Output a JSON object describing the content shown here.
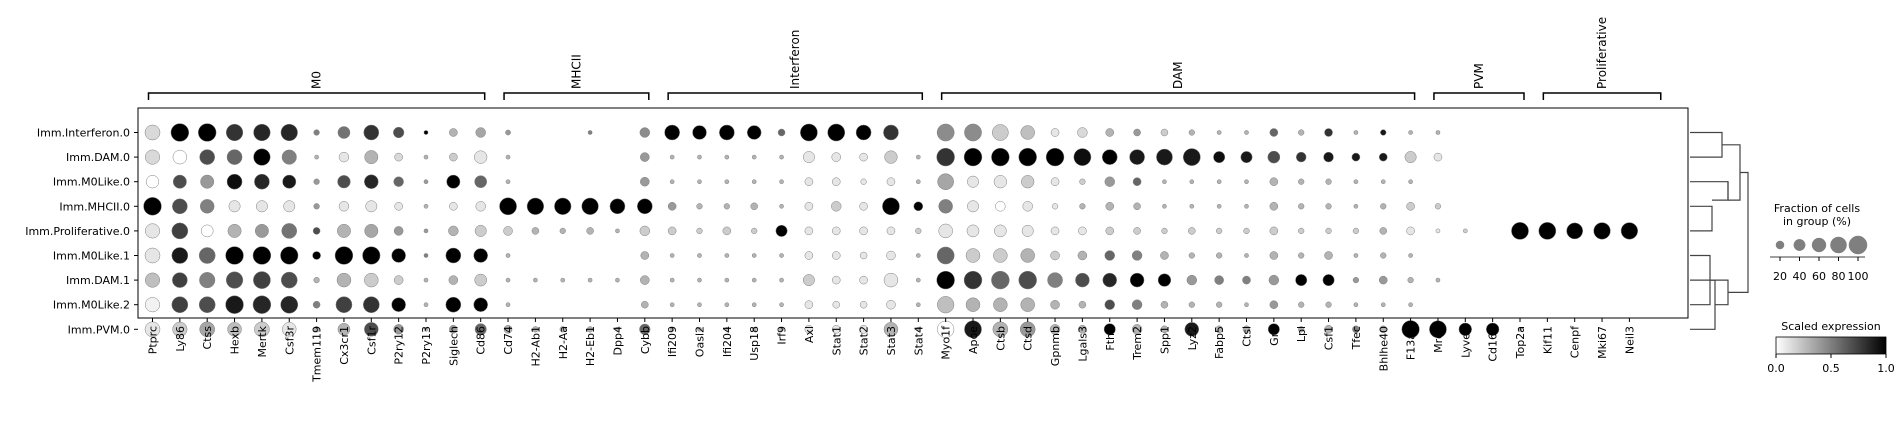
{
  "chart_data": {
    "type": "dotplot",
    "groups": [
      "Imm.Interferon.0",
      "Imm.DAM.0",
      "Imm.M0Like.0",
      "Imm.MHCII.0",
      "Imm.Proliferative.0",
      "Imm.M0Like.1",
      "Imm.DAM.1",
      "Imm.M0Like.2",
      "Imm.PVM.0"
    ],
    "genes": [
      "Ptprc",
      "Ly86",
      "Ctss",
      "Hexb",
      "Mertk",
      "Csf3r",
      "Tmem119",
      "Cx3cr1",
      "Csf1r",
      "P2ry12",
      "P2ry13",
      "Siglech",
      "Cd86",
      "Cd74",
      "H2-Ab1",
      "H2-Aa",
      "H2-Eb1",
      "Dpp4",
      "Cybb",
      "Ifi209",
      "Oasl2",
      "Ifi204",
      "Usp18",
      "Irf9",
      "Axl",
      "Stat1",
      "Stat2",
      "Stat3",
      "Stat4",
      "Myo1f",
      "Apoe",
      "Ctsb",
      "Ctsd",
      "Gpnmb",
      "Lgals3",
      "Fth1",
      "Trem2",
      "Spp1",
      "Lyz2",
      "Fabp5",
      "Ctsl",
      "Grn",
      "Lpl",
      "Csf1",
      "Tfec",
      "Bhlhe40",
      "F13a1",
      "Mrc1",
      "Lyve1",
      "Cd163",
      "Top2a",
      "Kif11",
      "Cenpf",
      "Mki67",
      "Neil3"
    ],
    "gene_groups": [
      {
        "label": "M0",
        "start": 0,
        "end": 12
      },
      {
        "label": "MHCII",
        "start": 13,
        "end": 18
      },
      {
        "label": "Interferon",
        "start": 19,
        "end": 28
      },
      {
        "label": "DAM",
        "start": 29,
        "end": 46
      },
      {
        "label": "PVM",
        "start": 47,
        "end": 50
      },
      {
        "label": "Proliferative",
        "start": 51,
        "end": 55
      }
    ],
    "fraction": [
      [
        70,
        98,
        98,
        85,
        85,
        85,
        10,
        45,
        70,
        35,
        5,
        20,
        30,
        8,
        0,
        0,
        5,
        0,
        30,
        70,
        60,
        70,
        60,
        15,
        90,
        90,
        70,
        70,
        0,
        90,
        90,
        80,
        60,
        20,
        30,
        20,
        15,
        15,
        10,
        5,
        5,
        20,
        10,
        20,
        5,
        10,
        5,
        5,
        0,
        0,
        0,
        0,
        0,
        0,
        0
      ],
      [
        65,
        60,
        70,
        70,
        85,
        65,
        5,
        30,
        55,
        20,
        5,
        20,
        50,
        5,
        0,
        0,
        0,
        0,
        25,
        5,
        5,
        5,
        5,
        5,
        40,
        25,
        20,
        50,
        5,
        98,
        98,
        98,
        98,
        98,
        90,
        70,
        70,
        80,
        90,
        40,
        40,
        45,
        30,
        30,
        20,
        20,
        40,
        20,
        0,
        0,
        0,
        0,
        0,
        0,
        0
      ],
      [
        50,
        55,
        55,
        70,
        70,
        55,
        10,
        50,
        60,
        30,
        5,
        55,
        45,
        5,
        0,
        0,
        0,
        0,
        25,
        5,
        5,
        5,
        5,
        5,
        20,
        20,
        10,
        20,
        5,
        80,
        40,
        50,
        50,
        20,
        10,
        30,
        20,
        5,
        5,
        5,
        5,
        20,
        10,
        10,
        5,
        5,
        5,
        0,
        0,
        0,
        0,
        0,
        0,
        0,
        0
      ],
      [
        98,
        70,
        60,
        40,
        40,
        40,
        10,
        30,
        40,
        20,
        5,
        20,
        30,
        90,
        85,
        85,
        85,
        70,
        70,
        20,
        10,
        10,
        15,
        5,
        20,
        30,
        20,
        90,
        25,
        60,
        40,
        30,
        30,
        10,
        10,
        20,
        15,
        5,
        5,
        5,
        5,
        20,
        10,
        10,
        5,
        10,
        20,
        10,
        0,
        0,
        0,
        0,
        0,
        0,
        0
      ],
      [
        65,
        80,
        45,
        55,
        55,
        70,
        15,
        55,
        55,
        25,
        5,
        30,
        40,
        25,
        15,
        10,
        15,
        5,
        30,
        20,
        10,
        20,
        10,
        40,
        20,
        20,
        20,
        20,
        10,
        60,
        45,
        45,
        40,
        20,
        20,
        20,
        15,
        10,
        15,
        10,
        10,
        20,
        10,
        10,
        10,
        15,
        20,
        5,
        5,
        0,
        90,
        90,
        80,
        85,
        85
      ],
      [
        70,
        80,
        80,
        98,
        98,
        95,
        20,
        98,
        95,
        60,
        5,
        70,
        60,
        5,
        0,
        0,
        0,
        0,
        20,
        5,
        5,
        5,
        5,
        5,
        20,
        20,
        15,
        25,
        5,
        90,
        60,
        60,
        60,
        25,
        25,
        30,
        30,
        20,
        10,
        10,
        5,
        20,
        10,
        20,
        5,
        10,
        5,
        0,
        0,
        0,
        0,
        0,
        0,
        0,
        0
      ],
      [
        65,
        70,
        75,
        85,
        90,
        80,
        10,
        60,
        60,
        25,
        5,
        25,
        45,
        5,
        5,
        5,
        5,
        5,
        25,
        5,
        5,
        5,
        5,
        5,
        40,
        20,
        20,
        60,
        5,
        98,
        98,
        98,
        98,
        70,
        60,
        60,
        60,
        50,
        30,
        25,
        20,
        30,
        40,
        40,
        10,
        20,
        10,
        5,
        0,
        0,
        0,
        0,
        0,
        0,
        0
      ],
      [
        65,
        80,
        80,
        98,
        98,
        90,
        15,
        80,
        80,
        60,
        5,
        70,
        60,
        5,
        0,
        0,
        0,
        0,
        15,
        5,
        5,
        5,
        5,
        5,
        20,
        15,
        15,
        25,
        5,
        85,
        60,
        60,
        60,
        25,
        15,
        30,
        30,
        15,
        10,
        10,
        5,
        20,
        10,
        10,
        5,
        5,
        5,
        0,
        0,
        0,
        0,
        0,
        0,
        0,
        0
      ],
      [
        70,
        65,
        70,
        60,
        70,
        60,
        10,
        45,
        60,
        30,
        5,
        20,
        40,
        20,
        10,
        10,
        10,
        5,
        35,
        5,
        5,
        5,
        5,
        5,
        20,
        20,
        20,
        60,
        5,
        85,
        90,
        70,
        70,
        30,
        20,
        40,
        30,
        15,
        60,
        15,
        15,
        40,
        10,
        20,
        15,
        15,
        95,
        90,
        50,
        50,
        5,
        0,
        0,
        0,
        0
      ]
    ],
    "expression": [
      [
        0.15,
        1.0,
        1.0,
        0.8,
        0.85,
        0.85,
        0.5,
        0.55,
        0.8,
        0.7,
        1.0,
        0.3,
        0.35,
        0.4,
        0,
        0,
        0.5,
        0,
        0.45,
        1.0,
        1.0,
        1.0,
        1.0,
        0.6,
        1.0,
        1.0,
        1.0,
        0.8,
        0,
        0.45,
        0.45,
        0.2,
        0.25,
        0.1,
        0.15,
        0.3,
        0.4,
        0.2,
        0.3,
        0.3,
        0.3,
        0.6,
        0.3,
        0.8,
        0.3,
        0.9,
        0.3,
        0.3,
        0,
        0,
        0,
        0,
        0,
        0,
        0
      ],
      [
        0.15,
        0.0,
        0.7,
        0.6,
        1.0,
        0.5,
        0.3,
        0.1,
        0.3,
        0.15,
        0.3,
        0.2,
        0.1,
        0.3,
        0,
        0,
        0,
        0,
        0.4,
        0.3,
        0.3,
        0.3,
        0.3,
        0.3,
        0.1,
        0.1,
        0.1,
        0.2,
        0.3,
        0.8,
        1.0,
        1.0,
        1.0,
        1.0,
        0.95,
        1.0,
        0.9,
        0.9,
        0.9,
        0.95,
        0.9,
        0.7,
        0.8,
        0.9,
        0.9,
        0.9,
        0.2,
        0.1,
        0,
        0,
        0,
        0,
        0,
        0,
        0
      ],
      [
        0.0,
        0.7,
        0.4,
        0.95,
        0.85,
        0.9,
        0.4,
        0.7,
        0.85,
        0.6,
        0.4,
        1.0,
        0.6,
        0.3,
        0,
        0,
        0,
        0,
        0.4,
        0.3,
        0.3,
        0.3,
        0.3,
        0.3,
        0.1,
        0.1,
        0.1,
        0.1,
        0.3,
        0.35,
        0.1,
        0.1,
        0.2,
        0.1,
        0.2,
        0.4,
        0.6,
        0.3,
        0.3,
        0.3,
        0.3,
        0.3,
        0.3,
        0.3,
        0.3,
        0.3,
        0.3,
        0,
        0,
        0,
        0,
        0,
        0,
        0,
        0
      ],
      [
        1.0,
        0.7,
        0.5,
        0.1,
        0.1,
        0.1,
        0.4,
        0.1,
        0.1,
        0.1,
        0.3,
        0.1,
        0.1,
        1.0,
        1.0,
        1.0,
        1.0,
        1.0,
        1.0,
        0.4,
        0.3,
        0.3,
        0.3,
        0.3,
        0.1,
        0.2,
        0.1,
        1.0,
        1.0,
        0.5,
        0.1,
        0.0,
        0.1,
        0.1,
        0.3,
        0.3,
        0.3,
        0.3,
        0.3,
        0.3,
        0.3,
        0.3,
        0.3,
        0.3,
        0.3,
        0.3,
        0.2,
        0.2,
        0,
        0,
        0,
        0,
        0,
        0,
        0
      ],
      [
        0.1,
        0.75,
        0.0,
        0.3,
        0.4,
        0.55,
        0.7,
        0.3,
        0.35,
        0.4,
        0.4,
        0.3,
        0.2,
        0.2,
        0.3,
        0.3,
        0.3,
        0.3,
        0.2,
        0.2,
        0.2,
        0.2,
        0.2,
        1.0,
        0.1,
        0.1,
        0.1,
        0.1,
        0.2,
        0.1,
        0.1,
        0.1,
        0.1,
        0.1,
        0.1,
        0.2,
        0.2,
        0.2,
        0.2,
        0.2,
        0.2,
        0.2,
        0.2,
        0.2,
        0.2,
        0.3,
        0.1,
        0.1,
        0.2,
        0,
        1.0,
        1.0,
        1.0,
        1.0,
        1.0
      ],
      [
        0.1,
        0.9,
        0.6,
        1.0,
        1.0,
        1.0,
        1.0,
        1.0,
        1.0,
        1.0,
        0.5,
        1.0,
        1.0,
        0.3,
        0,
        0,
        0,
        0,
        0.3,
        0.3,
        0.3,
        0.3,
        0.3,
        0.3,
        0.1,
        0.1,
        0.1,
        0.1,
        0.3,
        0.6,
        0.2,
        0.2,
        0.3,
        0.2,
        0.3,
        0.6,
        0.5,
        0.3,
        0.3,
        0.3,
        0.3,
        0.3,
        0.3,
        0.3,
        0.3,
        0.3,
        0.3,
        0,
        0,
        0,
        0,
        0,
        0,
        0,
        0
      ],
      [
        0.25,
        0.75,
        0.5,
        0.7,
        0.75,
        0.7,
        0.3,
        0.3,
        0.2,
        0.2,
        0.3,
        0.3,
        0.2,
        0.3,
        0.3,
        0.3,
        0.3,
        0.3,
        0.3,
        0.3,
        0.3,
        0.3,
        0.3,
        0.3,
        0.2,
        0.1,
        0.1,
        0.1,
        0.3,
        1.0,
        0.8,
        0.6,
        0.7,
        0.5,
        0.7,
        0.85,
        1.0,
        1.0,
        0.4,
        0.5,
        0.5,
        0.4,
        1.0,
        1.0,
        0.4,
        0.4,
        0.3,
        0.3,
        0,
        0,
        0,
        0,
        0,
        0,
        0
      ],
      [
        0.05,
        0.75,
        0.7,
        0.9,
        0.85,
        0.85,
        0.5,
        0.75,
        0.8,
        1.0,
        0.3,
        1.0,
        1.0,
        0.3,
        0,
        0,
        0,
        0,
        0.3,
        0.3,
        0.3,
        0.3,
        0.3,
        0.3,
        0.1,
        0.1,
        0.1,
        0.1,
        0.3,
        0.25,
        0.3,
        0.3,
        0.3,
        0.3,
        0.3,
        0.7,
        0.5,
        0.3,
        0.3,
        0.3,
        0.3,
        0.4,
        0.3,
        0.3,
        0.3,
        0.3,
        0.3,
        0,
        0,
        0,
        0,
        0,
        0,
        0,
        0
      ],
      [
        0.1,
        0.2,
        0.35,
        0.25,
        0.2,
        0.1,
        0.3,
        0.3,
        0.7,
        0.4,
        0.3,
        0.4,
        0.6,
        0.3,
        0.3,
        0.3,
        0.3,
        0.3,
        0.6,
        0.3,
        0.3,
        0.3,
        0.3,
        0.3,
        0.1,
        0.1,
        0.1,
        0.3,
        0.3,
        0.0,
        0.9,
        0.3,
        0.4,
        0.3,
        0.3,
        1.0,
        0.3,
        0.3,
        0.9,
        0.3,
        0.3,
        1.0,
        0.3,
        0.3,
        0.5,
        0.3,
        1.0,
        1.0,
        1.0,
        1.0,
        0.3,
        0,
        0,
        0,
        0
      ]
    ],
    "size_legend": {
      "title": "Fraction of cells\nin group (%)",
      "ticks": [
        20,
        40,
        60,
        80,
        100
      ]
    },
    "color_legend": {
      "title": "Scaled expression",
      "ticks": [
        "0.0",
        "0.5",
        "1.0"
      ],
      "range": [
        0,
        1
      ],
      "colormap": [
        "#ffffff",
        "#000000"
      ]
    },
    "dendrogram": {
      "order": [
        "Imm.Interferon.0",
        "Imm.DAM.0",
        "Imm.M0Like.0",
        "Imm.MHCII.0",
        "Imm.Proliferative.0",
        "Imm.M0Like.1",
        "Imm.DAM.1",
        "Imm.M0Like.2",
        "Imm.PVM.0"
      ]
    }
  }
}
